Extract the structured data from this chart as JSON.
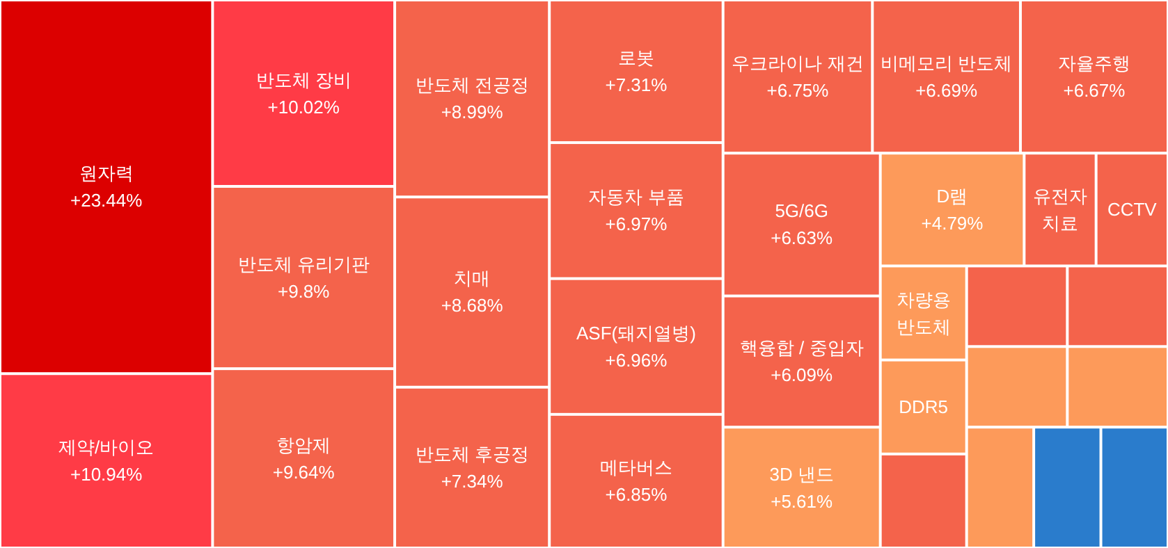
{
  "chart_data": {
    "type": "other",
    "categories": [
      "원자력",
      "제약/바이오",
      "반도체 장비",
      "반도체 유리기판",
      "항암제",
      "반도체 전공정",
      "치매",
      "반도체 후공정",
      "로봇",
      "자동차 부품",
      "ASF(돼지열병)",
      "메타버스",
      "우크라이나 재건",
      "비메모리 반도체",
      "자율주행",
      "5G/6G",
      "핵융합 / 중입자",
      "3D 낸드",
      "D램",
      "유전자 치료",
      "CCTV",
      "차량용 반도체",
      "DDR5",
      null,
      null,
      null,
      null,
      null,
      null,
      null,
      null
    ],
    "values": [
      23.44,
      10.94,
      10.02,
      9.8,
      9.64,
      8.99,
      8.68,
      7.34,
      7.31,
      6.97,
      6.96,
      6.85,
      6.75,
      6.69,
      6.67,
      6.63,
      6.09,
      5.61,
      4.79,
      null,
      null,
      null,
      null,
      null,
      null,
      null,
      null,
      null,
      null,
      null,
      null
    ],
    "value_labels": [
      "+23.44%",
      "+10.94%",
      "+10.02%",
      "+9.8%",
      "+9.64%",
      "+8.99%",
      "+8.68%",
      "+7.34%",
      "+7.31%",
      "+6.97%",
      "+6.96%",
      "+6.85%",
      "+6.75%",
      "+6.69%",
      "+6.67%",
      "+6.63%",
      "+6.09%",
      "+5.61%",
      "+4.79%",
      null,
      null,
      null,
      null,
      null,
      null,
      null,
      null,
      null,
      null,
      null,
      null
    ],
    "colors": [
      "#dc0000",
      "#ff3b46",
      "#ff3b46",
      "#f4634b",
      "#f4634b",
      "#f4634b",
      "#f4634b",
      "#f4634b",
      "#f4634b",
      "#f4634b",
      "#f4634b",
      "#f4634b",
      "#f4634b",
      "#f4634b",
      "#f4634b",
      "#f4634b",
      "#f4634b",
      "#fd9a5a",
      "#fd9a5a",
      "#f4634b",
      "#f4634b",
      "#fd9a5a",
      "#fd9a5a",
      "#f4634b",
      "#f4634b",
      "#f4634b",
      "#fd9a5a",
      "#fd9a5a",
      "#fd9a5a",
      "#2a7ccc",
      "#2a7ccc"
    ]
  }
}
